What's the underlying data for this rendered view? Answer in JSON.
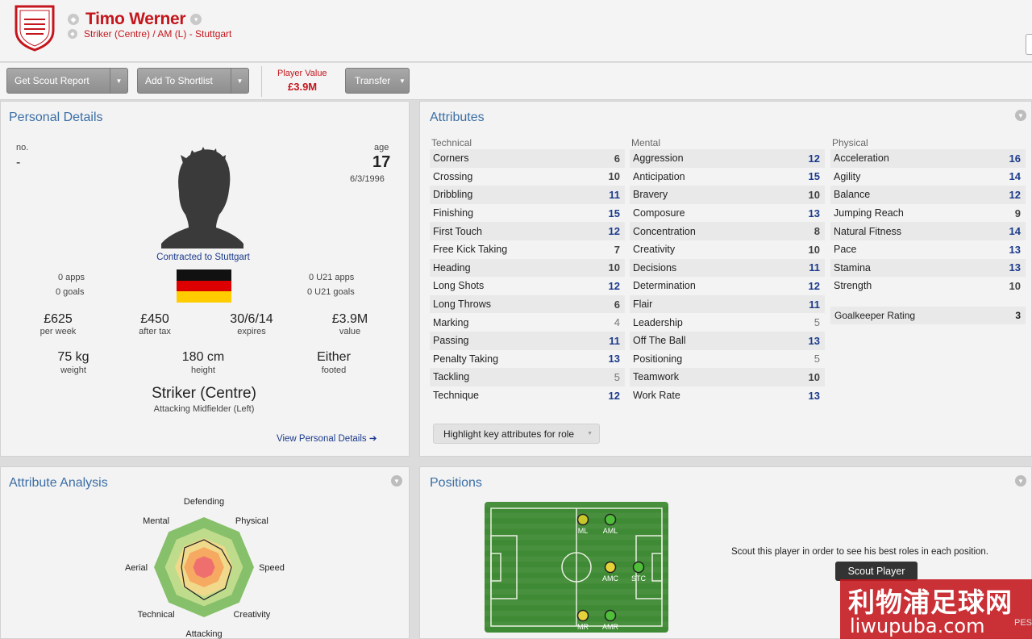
{
  "header": {
    "player_name": "Timo Werner",
    "subtitle": "Striker (Centre) / AM (L) - Stuttgart"
  },
  "toolbar": {
    "scout_report_label": "Get Scout Report",
    "shortlist_label": "Add To Shortlist",
    "player_value_label": "Player Value",
    "player_value": "£3.9M",
    "transfer_label": "Transfer"
  },
  "personal": {
    "title": "Personal Details",
    "no_label": "no.",
    "no_value": "-",
    "age_label": "age",
    "age": "17",
    "dob": "6/3/1996",
    "contract": "Contracted to Stuttgart",
    "apps": "0 apps",
    "goals": "0 goals",
    "u21_apps": "0 U21 apps",
    "u21_goals": "0 U21 goals",
    "wage": "£625",
    "wage_label": "per week",
    "after_tax": "£450",
    "after_tax_label": "after tax",
    "expires": "30/6/14",
    "expires_label": "expires",
    "value": "£3.9M",
    "value_label": "value",
    "weight": "75 kg",
    "weight_label": "weight",
    "height": "180 cm",
    "height_label": "height",
    "foot": "Either",
    "foot_label": "footed",
    "position": "Striker (Centre)",
    "secondary_position": "Attacking Midfielder (Left)",
    "view_link": "View Personal Details"
  },
  "attributes": {
    "title": "Attributes",
    "technical_label": "Technical",
    "mental_label": "Mental",
    "physical_label": "Physical",
    "technical": [
      {
        "name": "Corners",
        "value": "6"
      },
      {
        "name": "Crossing",
        "value": "10"
      },
      {
        "name": "Dribbling",
        "value": "11"
      },
      {
        "name": "Finishing",
        "value": "15"
      },
      {
        "name": "First Touch",
        "value": "12"
      },
      {
        "name": "Free Kick Taking",
        "value": "7"
      },
      {
        "name": "Heading",
        "value": "10"
      },
      {
        "name": "Long Shots",
        "value": "12"
      },
      {
        "name": "Long Throws",
        "value": "6"
      },
      {
        "name": "Marking",
        "value": "4"
      },
      {
        "name": "Passing",
        "value": "11"
      },
      {
        "name": "Penalty Taking",
        "value": "13"
      },
      {
        "name": "Tackling",
        "value": "5"
      },
      {
        "name": "Technique",
        "value": "12"
      }
    ],
    "mental": [
      {
        "name": "Aggression",
        "value": "12"
      },
      {
        "name": "Anticipation",
        "value": "15"
      },
      {
        "name": "Bravery",
        "value": "10"
      },
      {
        "name": "Composure",
        "value": "13"
      },
      {
        "name": "Concentration",
        "value": "8"
      },
      {
        "name": "Creativity",
        "value": "10"
      },
      {
        "name": "Decisions",
        "value": "11"
      },
      {
        "name": "Determination",
        "value": "12"
      },
      {
        "name": "Flair",
        "value": "11"
      },
      {
        "name": "Leadership",
        "value": "5"
      },
      {
        "name": "Off The Ball",
        "value": "13"
      },
      {
        "name": "Positioning",
        "value": "5"
      },
      {
        "name": "Teamwork",
        "value": "10"
      },
      {
        "name": "Work Rate",
        "value": "13"
      }
    ],
    "physical": [
      {
        "name": "Acceleration",
        "value": "16"
      },
      {
        "name": "Agility",
        "value": "14"
      },
      {
        "name": "Balance",
        "value": "12"
      },
      {
        "name": "Jumping Reach",
        "value": "9"
      },
      {
        "name": "Natural Fitness",
        "value": "14"
      },
      {
        "name": "Pace",
        "value": "13"
      },
      {
        "name": "Stamina",
        "value": "13"
      },
      {
        "name": "Strength",
        "value": "10"
      }
    ],
    "goalkeeper_label": "Goalkeeper Rating",
    "goalkeeper_value": "3",
    "highlight_label": "Highlight key attributes for role"
  },
  "analysis": {
    "title": "Attribute Analysis",
    "axes": [
      "Defending",
      "Physical",
      "Speed",
      "Creativity",
      "Attacking",
      "Technical",
      "Aerial",
      "Mental"
    ],
    "levels": [
      0.55,
      0.5,
      0.55,
      0.6,
      0.65,
      0.55,
      0.45,
      0.55
    ]
  },
  "positions": {
    "title": "Positions",
    "labels": [
      "ML",
      "AML",
      "AMC",
      "STC",
      "MR",
      "AMR"
    ],
    "scout_text": "Scout this player in order to see his best roles in each position.",
    "scout_button": "Scout Player"
  },
  "watermark": {
    "cn": "利物浦足球网",
    "url": "liwupuba.com",
    "tag": "PES"
  },
  "colors": {
    "accent_red": "#c4161c",
    "title_blue": "#3b6ea5",
    "value_blue": "#1c3b8c",
    "pitch_green": "#3f8a34"
  }
}
